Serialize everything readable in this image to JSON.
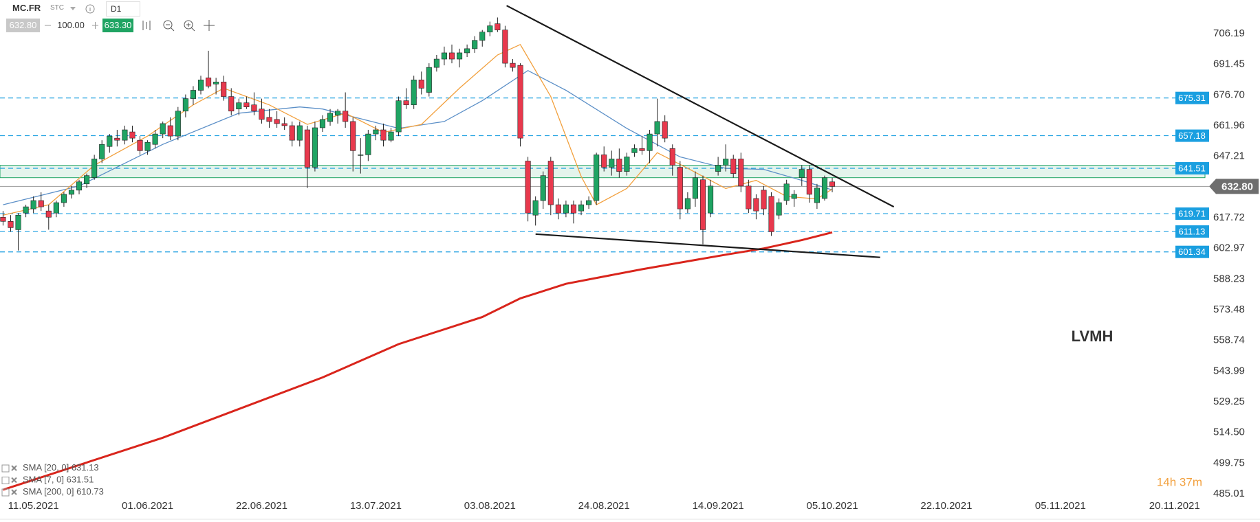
{
  "toolbar": {
    "symbol": "MC.FR",
    "market": "STC",
    "interval": "D1",
    "bid": "632.80",
    "volume": "100.00",
    "ask": "633.30"
  },
  "chart_data": {
    "type": "candlestick",
    "annotation": "LVMH",
    "timer": "14h 37m",
    "grid": false,
    "xlim": [
      -0.4,
      158
    ],
    "xticks": [
      {
        "value": 4,
        "label": "11.05.2021"
      },
      {
        "value": 19,
        "label": "01.06.2021"
      },
      {
        "value": 34,
        "label": "22.06.2021"
      },
      {
        "value": 49,
        "label": "13.07.2021"
      },
      {
        "value": 64,
        "label": "03.08.2021"
      },
      {
        "value": 79,
        "label": "24.08.2021"
      },
      {
        "value": 94,
        "label": "14.09.2021"
      },
      {
        "value": 109,
        "label": "05.10.2021"
      },
      {
        "value": 124,
        "label": "22.10.2021"
      },
      {
        "value": 139,
        "label": "05.11.2021"
      },
      {
        "value": 154,
        "label": "20.11.2021"
      }
    ],
    "ylim": [
      475.8,
      722.4
    ],
    "yticks": [
      706.19,
      691.45,
      {
        "value": 676.7,
        "label": "676.70"
      },
      661.96,
      647.21,
      617.72,
      602.97,
      588.23,
      573.48,
      558.74,
      543.99,
      529.25,
      {
        "value": 514.5,
        "label": "514.50"
      },
      499.75,
      485.01
    ],
    "up_color": "#1fa463",
    "down_color": "#e8394d",
    "candles": [
      [
        618,
        621,
        614,
        616
      ],
      [
        616,
        619,
        611,
        613
      ],
      [
        612,
        620,
        602,
        619
      ],
      [
        620,
        624,
        618,
        623
      ],
      [
        622,
        628,
        620,
        626
      ],
      [
        626,
        630,
        621,
        623
      ],
      [
        621,
        624,
        612,
        618
      ],
      [
        620,
        626,
        618,
        625
      ],
      [
        625,
        630,
        623,
        629
      ],
      [
        629,
        633,
        627,
        631
      ],
      [
        631,
        636,
        629,
        635
      ],
      [
        634,
        639,
        632,
        638
      ],
      [
        637,
        648,
        636,
        646
      ],
      [
        646,
        655,
        644,
        653
      ],
      [
        652,
        658,
        649,
        657
      ],
      [
        656,
        660,
        652,
        655
      ],
      [
        655,
        662,
        653,
        660
      ],
      [
        659,
        662,
        654,
        656
      ],
      [
        655,
        657,
        648,
        650
      ],
      [
        650,
        655,
        648,
        654
      ],
      [
        653,
        660,
        651,
        658
      ],
      [
        658,
        664,
        656,
        663
      ],
      [
        662,
        666,
        655,
        657
      ],
      [
        657,
        671,
        655,
        669
      ],
      [
        669,
        677,
        666,
        675
      ],
      [
        675,
        681,
        672,
        679
      ],
      [
        679,
        686,
        677,
        684
      ],
      [
        685,
        698,
        680,
        681
      ],
      [
        682,
        685,
        677,
        683
      ],
      [
        683,
        686,
        674,
        676
      ],
      [
        676,
        680,
        667,
        669
      ],
      [
        670,
        675,
        667,
        673
      ],
      [
        673,
        676,
        670,
        671
      ],
      [
        672,
        678,
        667,
        669
      ],
      [
        670,
        675,
        663,
        665
      ],
      [
        666,
        670,
        661,
        664
      ],
      [
        665,
        669,
        661,
        663
      ],
      [
        663,
        666,
        660,
        662
      ],
      [
        662,
        664,
        652,
        655
      ],
      [
        655,
        664,
        652,
        662
      ],
      [
        660,
        662,
        632,
        642
      ],
      [
        642,
        664,
        640,
        661
      ],
      [
        661,
        667,
        659,
        665
      ],
      [
        664,
        670,
        662,
        668
      ],
      [
        667,
        670,
        663,
        669
      ],
      [
        669,
        678,
        661,
        664
      ],
      [
        664,
        666,
        640,
        650
      ],
      [
        648,
        656,
        639,
        648
      ],
      [
        648,
        660,
        645,
        658
      ],
      [
        658,
        662,
        655,
        660
      ],
      [
        660,
        663,
        652,
        655
      ],
      [
        655,
        661,
        654,
        659
      ],
      [
        659,
        676,
        657,
        674
      ],
      [
        674,
        680,
        670,
        672
      ],
      [
        672,
        686,
        670,
        684
      ],
      [
        684,
        688,
        677,
        680
      ],
      [
        678,
        692,
        676,
        690
      ],
      [
        690,
        696,
        688,
        694
      ],
      [
        694,
        700,
        691,
        697
      ],
      [
        697,
        701,
        692,
        694
      ],
      [
        694,
        699,
        690,
        697
      ],
      [
        697,
        701,
        695,
        699
      ],
      [
        699,
        705,
        697,
        703
      ],
      [
        703,
        708,
        700,
        707
      ],
      [
        707,
        712,
        705,
        710
      ],
      [
        711,
        714,
        707,
        708
      ],
      [
        708,
        710,
        690,
        692
      ],
      [
        692,
        694,
        688,
        690
      ],
      [
        691,
        692,
        652,
        656
      ],
      [
        645,
        647,
        616,
        620
      ],
      [
        619,
        628,
        614,
        626
      ],
      [
        626,
        640,
        622,
        638
      ],
      [
        645,
        647,
        619,
        624
      ],
      [
        624,
        627,
        617,
        620
      ],
      [
        620,
        626,
        618,
        624
      ],
      [
        624,
        626,
        615,
        620
      ],
      [
        621,
        626,
        619,
        624
      ],
      [
        624,
        628,
        622,
        626
      ],
      [
        626,
        649,
        624,
        648
      ],
      [
        648,
        652,
        640,
        642
      ],
      [
        642,
        650,
        638,
        646
      ],
      [
        646,
        651,
        637,
        640
      ],
      [
        640,
        649,
        638,
        647
      ],
      [
        649,
        653,
        647,
        651
      ],
      [
        651,
        657,
        648,
        650
      ],
      [
        650,
        660,
        644,
        658
      ],
      [
        658,
        675,
        652,
        664
      ],
      [
        664,
        667,
        654,
        656
      ],
      [
        651,
        653,
        638,
        643
      ],
      [
        642,
        645,
        617,
        622
      ],
      [
        622,
        630,
        620,
        627
      ],
      [
        627,
        640,
        623,
        637
      ],
      [
        636,
        638,
        605,
        612
      ],
      [
        620,
        636,
        618,
        633
      ],
      [
        640,
        647,
        638,
        643
      ],
      [
        643,
        653,
        640,
        646
      ],
      [
        646,
        648,
        637,
        639
      ],
      [
        646,
        649,
        630,
        633
      ],
      [
        633,
        636,
        620,
        622
      ],
      [
        627,
        629,
        617,
        621
      ],
      [
        631,
        633,
        619,
        622
      ],
      [
        628,
        630,
        609,
        611
      ],
      [
        619,
        627,
        617,
        625
      ],
      [
        626,
        636,
        624,
        634
      ],
      [
        627,
        631,
        623,
        629
      ],
      [
        637,
        643,
        633,
        641
      ],
      [
        641,
        643,
        625,
        629
      ],
      [
        625,
        634,
        622,
        632
      ],
      [
        627,
        638,
        626,
        637
      ],
      [
        635,
        637,
        630,
        632.8
      ]
    ],
    "series": [
      {
        "name": "SMA [20, 0]",
        "color": "#5b8fc7",
        "x": [
          0,
          10,
          21,
          31,
          39,
          42,
          52,
          58,
          63,
          69,
          74,
          82,
          89,
          95,
          100,
          105,
          109
        ],
        "values": [
          624,
          633,
          653,
          668,
          671,
          670,
          660.7,
          664,
          674,
          688.5,
          679,
          660.7,
          647,
          641.5,
          641,
          635.7,
          631.13
        ]
      },
      {
        "name": "SMA [7, 0]",
        "color": "#f2a03d",
        "x": [
          0,
          6,
          12,
          19,
          25,
          29,
          35,
          40,
          45,
          50,
          55,
          60,
          65,
          68,
          72,
          76,
          78,
          82,
          86,
          90,
          95,
          99,
          103,
          107,
          109
        ],
        "values": [
          619,
          624,
          643,
          657,
          672,
          680,
          672,
          662.6,
          668,
          658.8,
          662.6,
          680,
          696,
          701,
          676,
          637.6,
          624,
          631.8,
          649,
          641.5,
          631.8,
          635.7,
          628,
          626.8,
          631.51
        ]
      },
      {
        "name": "SMA [200, 0]",
        "color": "#d9251c",
        "x": [
          0,
          21,
          42,
          52,
          63,
          68,
          74,
          84,
          95,
          100,
          105,
          109
        ],
        "values": [
          487,
          512,
          541,
          557,
          570,
          579,
          586,
          593,
          600,
          603,
          607,
          610.73
        ]
      }
    ],
    "levels": [
      675.31,
      657.18,
      641.51,
      619.71,
      611.13,
      601.34
    ],
    "level_color": "#1a9fe0",
    "current": {
      "value": 632.8,
      "label": "632.80"
    },
    "zone": [
      637,
      643
    ],
    "trendlines": [
      {
        "x": [
          66.2,
          117.1
        ],
        "values": [
          719.7,
          623
        ]
      },
      {
        "x": [
          70,
          115.3
        ],
        "values": [
          609.9,
          598.7
        ]
      }
    ]
  }
}
